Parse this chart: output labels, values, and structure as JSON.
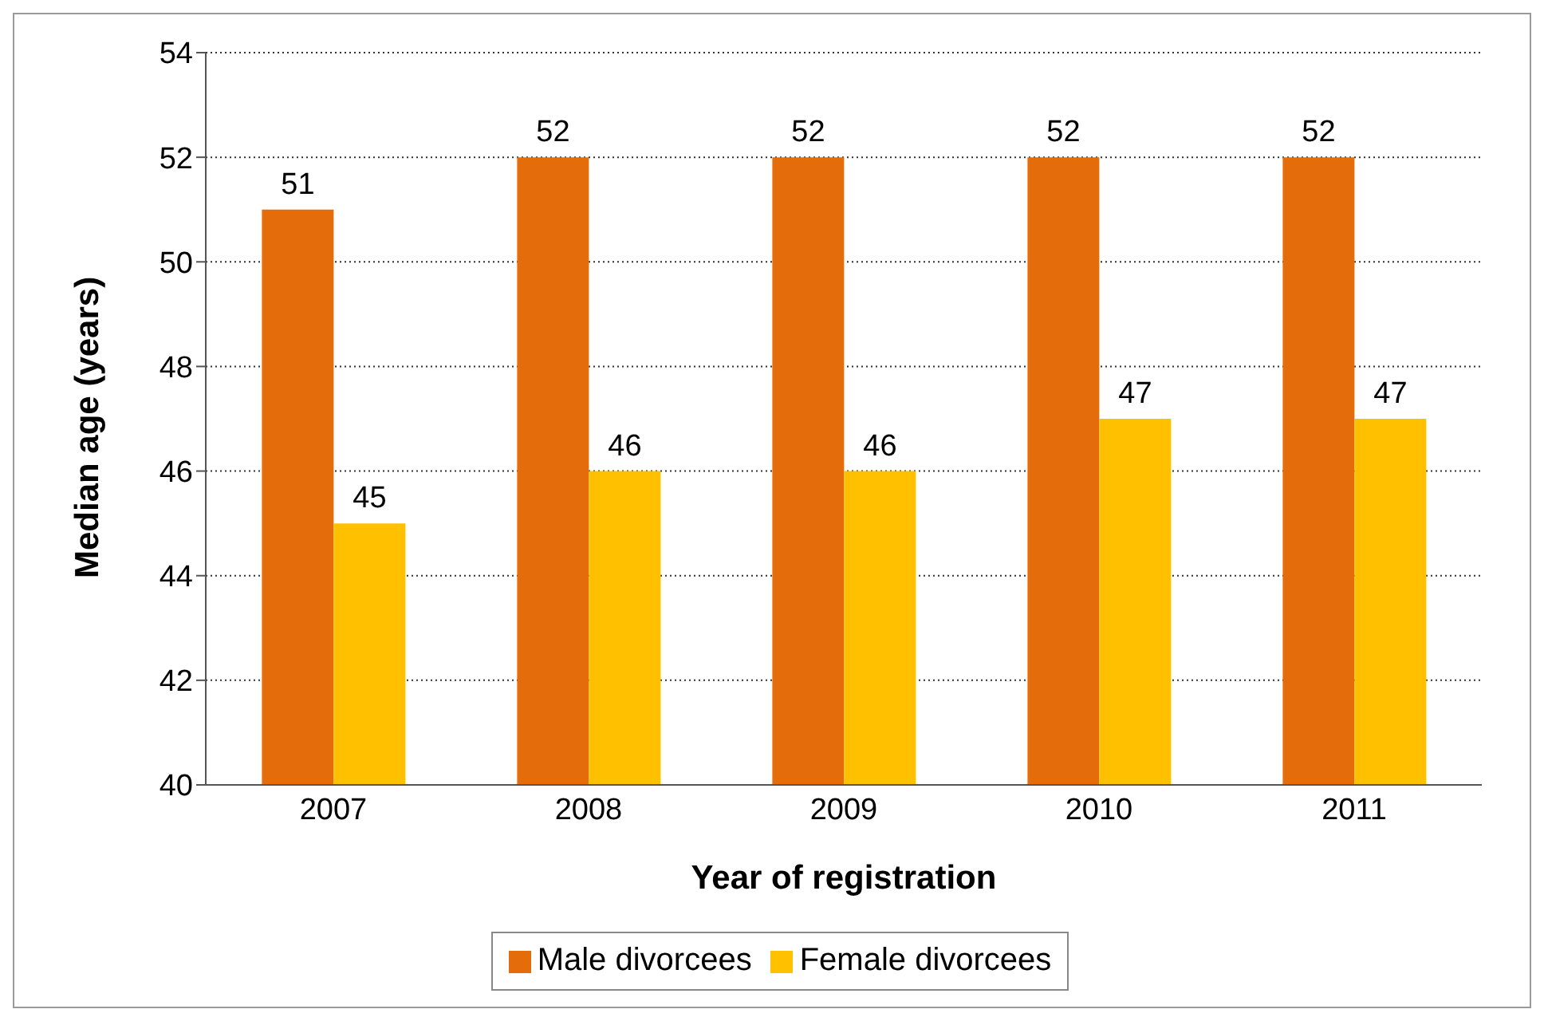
{
  "chart_data": {
    "type": "bar",
    "xlabel": "Year of registration",
    "ylabel": "Median age (years)",
    "categories": [
      "2007",
      "2008",
      "2009",
      "2010",
      "2011"
    ],
    "series": [
      {
        "name": "Male divorcees",
        "color": "#e46c0a",
        "values": [
          51,
          52,
          52,
          52,
          52
        ]
      },
      {
        "name": "Female divorcees",
        "color": "#ffc000",
        "values": [
          45,
          46,
          46,
          47,
          47
        ]
      }
    ],
    "ylim": [
      40,
      54
    ],
    "yticks": [
      40,
      42,
      44,
      46,
      48,
      50,
      52,
      54
    ],
    "grid": "y",
    "legend": "bottom",
    "data_labels": true
  }
}
